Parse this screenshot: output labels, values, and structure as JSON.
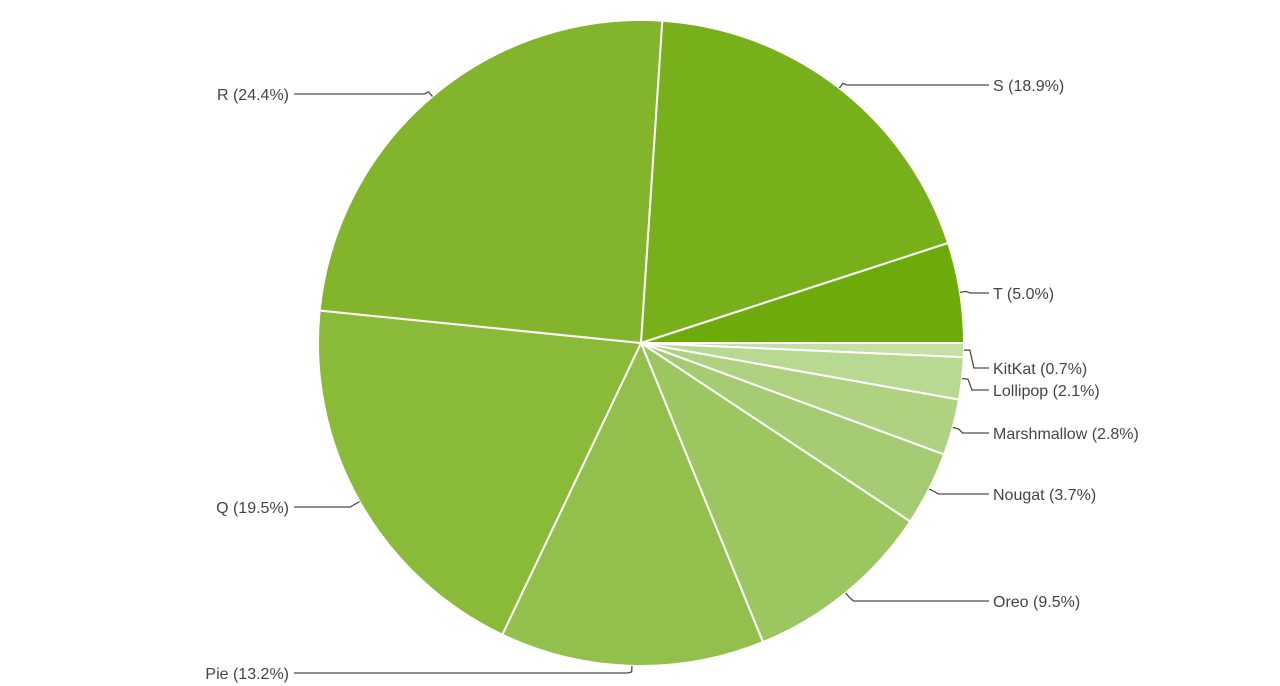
{
  "chart_data": {
    "type": "pie",
    "slices": [
      {
        "label": "KitKat (0.7%)",
        "value": 0.7,
        "color": "#c4e0a3"
      },
      {
        "label": "Lollipop (2.1%)",
        "value": 2.1,
        "color": "#b8d992"
      },
      {
        "label": "Marshmallow (2.8%)",
        "value": 2.8,
        "color": "#aed27f"
      },
      {
        "label": "Nougat (3.7%)",
        "value": 3.7,
        "color": "#a5cc72"
      },
      {
        "label": "Oreo (9.5%)",
        "value": 9.5,
        "color": "#9cc660"
      },
      {
        "label": "Pie (13.2%)",
        "value": 13.2,
        "color": "#93c04c"
      },
      {
        "label": "Q (19.5%)",
        "value": 19.5,
        "color": "#89ba38"
      },
      {
        "label": "R (24.4%)",
        "value": 24.4,
        "color": "#82b52b"
      },
      {
        "label": "S (18.9%)",
        "value": 18.9,
        "color": "#78b01b"
      },
      {
        "label": "T (5.0%)",
        "value": 5.0,
        "color": "#6dab0a"
      }
    ],
    "start_angle_deg": 0,
    "direction": "clockwise",
    "legend": "labels with leader lines"
  }
}
